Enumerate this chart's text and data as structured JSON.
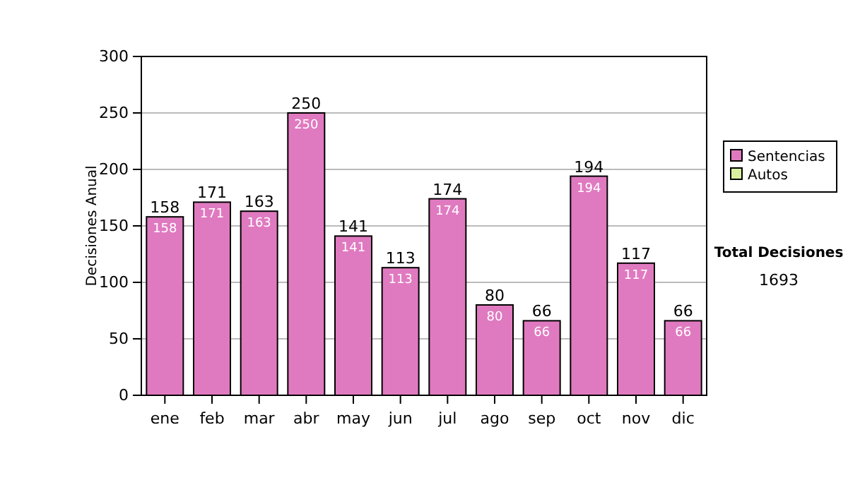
{
  "chart_data": {
    "type": "bar",
    "stacked": true,
    "ylabel": "Decisiones Anual",
    "categories": [
      "ene",
      "feb",
      "mar",
      "abr",
      "may",
      "jun",
      "jul",
      "ago",
      "sep",
      "oct",
      "nov",
      "dic"
    ],
    "series": [
      {
        "name": "Sentencias",
        "color": "#e07ac0",
        "values": [
          158,
          171,
          163,
          250,
          141,
          113,
          174,
          80,
          66,
          194,
          117,
          66
        ],
        "value_labels": [
          "158",
          "171",
          "163",
          "250",
          "141",
          "113",
          "174",
          "80",
          "66",
          "194",
          "117",
          "66"
        ]
      },
      {
        "name": "Autos",
        "color": "#d8f0a0",
        "values": [
          0,
          0,
          0,
          0,
          0,
          0,
          0,
          0,
          0,
          0,
          0,
          0
        ],
        "value_labels": [
          null,
          null,
          null,
          null,
          null,
          null,
          null,
          null,
          null,
          null,
          null,
          null
        ]
      }
    ],
    "totals": [
      "158",
      "171",
      "163",
      "250",
      "141",
      "113",
      "174",
      "80",
      "66",
      "194",
      "117",
      "66"
    ],
    "ylim": [
      0,
      300
    ],
    "yticks": [
      0,
      50,
      100,
      150,
      200,
      250,
      300
    ],
    "grid": "y",
    "legend": "right",
    "annotations": [
      "Total Decisiones",
      "1693"
    ]
  }
}
